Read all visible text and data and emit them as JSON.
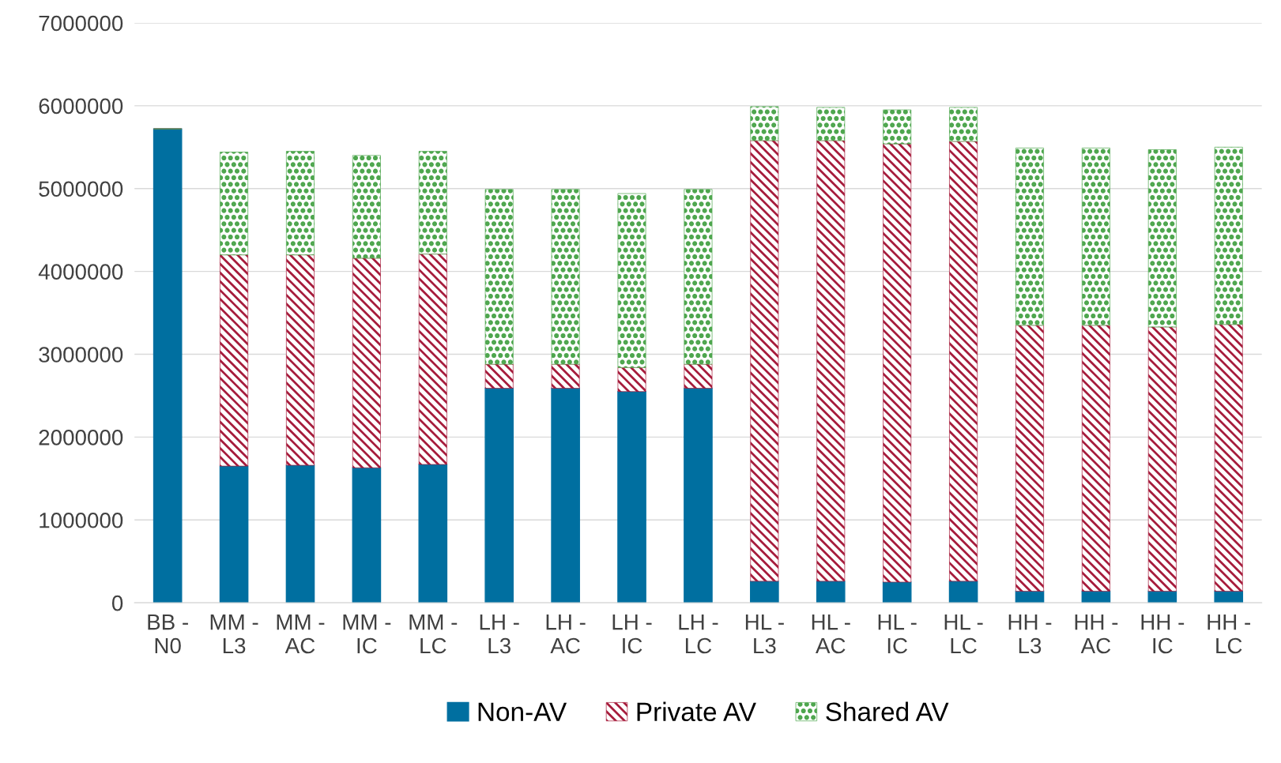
{
  "chart_data": {
    "type": "bar",
    "stacked": true,
    "categories": [
      "BB -\nN0",
      "MM -\nL3",
      "MM -\nAC",
      "MM -\nIC",
      "MM -\nLC",
      "LH -\nL3",
      "LH -\nAC",
      "LH -\nIC",
      "LH -\nLC",
      "HL -\nL3",
      "HL -\nAC",
      "HL -\nIC",
      "HL -\nLC",
      "HH -\nL3",
      "HH -\nAC",
      "HH -\nIC",
      "HH -\nLC"
    ],
    "series": [
      {
        "name": "Non-AV",
        "color": "#006fa0",
        "values": [
          5720000,
          1650000,
          1660000,
          1630000,
          1670000,
          2590000,
          2590000,
          2550000,
          2590000,
          260000,
          260000,
          250000,
          260000,
          140000,
          140000,
          140000,
          140000
        ]
      },
      {
        "name": "Private AV",
        "color": "#a61c3c",
        "values": [
          0,
          2550000,
          2540000,
          2530000,
          2540000,
          290000,
          290000,
          290000,
          290000,
          5320000,
          5320000,
          5290000,
          5310000,
          3210000,
          3210000,
          3190000,
          3220000
        ]
      },
      {
        "name": "Shared AV",
        "color": "#4ea64e",
        "values": [
          0,
          1240000,
          1250000,
          1240000,
          1240000,
          2110000,
          2110000,
          2100000,
          2110000,
          410000,
          400000,
          410000,
          410000,
          2140000,
          2140000,
          2140000,
          2140000
        ]
      }
    ],
    "ylim": [
      0,
      7000000
    ],
    "yticks": [
      0,
      1000000,
      2000000,
      3000000,
      4000000,
      5000000,
      6000000,
      7000000
    ],
    "grid": "y",
    "legend": "bottom"
  }
}
